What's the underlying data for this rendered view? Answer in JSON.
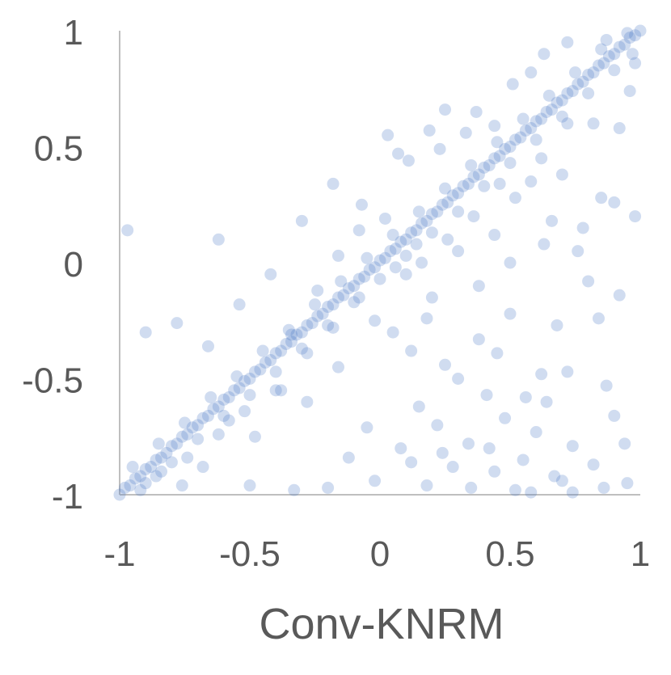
{
  "chart_data": {
    "type": "scatter",
    "title": "",
    "xlabel": "Conv-KNRM",
    "ylabel": "",
    "xlim": [
      -1,
      1
    ],
    "ylim": [
      -1,
      1
    ],
    "x_ticks": [
      -1,
      -0.5,
      0,
      0.5,
      1
    ],
    "y_ticks": [
      -1,
      -0.5,
      0,
      0.5,
      1
    ],
    "x_tick_labels": [
      "-1",
      "-0.5",
      "0",
      "0.5",
      "1"
    ],
    "y_tick_labels": [
      "-1",
      "-0.5",
      "0",
      "0.5",
      "1"
    ],
    "grid": false,
    "marker_color": "#4472C4",
    "marker_opacity": 0.25,
    "series": [
      {
        "points": [
          [
            -1.0,
            -1.0
          ],
          [
            -0.98,
            -0.97
          ],
          [
            -0.96,
            -0.96
          ],
          [
            -0.94,
            -0.93
          ],
          [
            -0.92,
            -0.92
          ],
          [
            -0.9,
            -0.89
          ],
          [
            -0.88,
            -0.88
          ],
          [
            -0.86,
            -0.85
          ],
          [
            -0.84,
            -0.84
          ],
          [
            -0.82,
            -0.82
          ],
          [
            -0.8,
            -0.79
          ],
          [
            -0.78,
            -0.78
          ],
          [
            -0.76,
            -0.75
          ],
          [
            -0.74,
            -0.74
          ],
          [
            -0.72,
            -0.71
          ],
          [
            -0.7,
            -0.7
          ],
          [
            -0.68,
            -0.67
          ],
          [
            -0.66,
            -0.66
          ],
          [
            -0.64,
            -0.63
          ],
          [
            -0.62,
            -0.62
          ],
          [
            -0.6,
            -0.59
          ],
          [
            -0.58,
            -0.58
          ],
          [
            -0.56,
            -0.55
          ],
          [
            -0.54,
            -0.54
          ],
          [
            -0.52,
            -0.51
          ],
          [
            -0.5,
            -0.5
          ],
          [
            -0.48,
            -0.47
          ],
          [
            -0.46,
            -0.46
          ],
          [
            -0.44,
            -0.43
          ],
          [
            -0.42,
            -0.42
          ],
          [
            -0.4,
            -0.39
          ],
          [
            -0.38,
            -0.38
          ],
          [
            -0.36,
            -0.35
          ],
          [
            -0.34,
            -0.34
          ],
          [
            -0.32,
            -0.31
          ],
          [
            -0.3,
            -0.3
          ],
          [
            -0.28,
            -0.27
          ],
          [
            -0.26,
            -0.26
          ],
          [
            -0.24,
            -0.23
          ],
          [
            -0.22,
            -0.22
          ],
          [
            -0.2,
            -0.19
          ],
          [
            -0.18,
            -0.18
          ],
          [
            -0.16,
            -0.15
          ],
          [
            -0.14,
            -0.14
          ],
          [
            -0.12,
            -0.11
          ],
          [
            -0.1,
            -0.1
          ],
          [
            -0.08,
            -0.07
          ],
          [
            -0.06,
            -0.06
          ],
          [
            -0.04,
            -0.03
          ],
          [
            -0.02,
            -0.02
          ],
          [
            0.0,
            0.01
          ],
          [
            0.02,
            0.02
          ],
          [
            0.04,
            0.05
          ],
          [
            0.06,
            0.06
          ],
          [
            0.08,
            0.09
          ],
          [
            0.1,
            0.1
          ],
          [
            0.12,
            0.13
          ],
          [
            0.14,
            0.14
          ],
          [
            0.16,
            0.17
          ],
          [
            0.18,
            0.18
          ],
          [
            0.2,
            0.21
          ],
          [
            0.22,
            0.22
          ],
          [
            0.24,
            0.25
          ],
          [
            0.26,
            0.26
          ],
          [
            0.28,
            0.29
          ],
          [
            0.3,
            0.3
          ],
          [
            0.32,
            0.33
          ],
          [
            0.34,
            0.34
          ],
          [
            0.36,
            0.37
          ],
          [
            0.38,
            0.38
          ],
          [
            0.4,
            0.41
          ],
          [
            0.42,
            0.42
          ],
          [
            0.44,
            0.45
          ],
          [
            0.46,
            0.46
          ],
          [
            0.48,
            0.49
          ],
          [
            0.5,
            0.5
          ],
          [
            0.52,
            0.53
          ],
          [
            0.54,
            0.54
          ],
          [
            0.56,
            0.57
          ],
          [
            0.58,
            0.58
          ],
          [
            0.6,
            0.61
          ],
          [
            0.62,
            0.62
          ],
          [
            0.64,
            0.65
          ],
          [
            0.66,
            0.66
          ],
          [
            0.68,
            0.69
          ],
          [
            0.7,
            0.7
          ],
          [
            0.72,
            0.73
          ],
          [
            0.74,
            0.74
          ],
          [
            0.76,
            0.77
          ],
          [
            0.78,
            0.78
          ],
          [
            0.8,
            0.81
          ],
          [
            0.82,
            0.82
          ],
          [
            0.84,
            0.85
          ],
          [
            0.86,
            0.86
          ],
          [
            0.88,
            0.89
          ],
          [
            0.9,
            0.9
          ],
          [
            0.92,
            0.93
          ],
          [
            0.94,
            0.94
          ],
          [
            0.96,
            0.97
          ],
          [
            0.98,
            0.98
          ],
          [
            1.0,
            1.0
          ],
          [
            -0.95,
            -0.88
          ],
          [
            -0.9,
            -0.95
          ],
          [
            -0.85,
            -0.78
          ],
          [
            -0.8,
            -0.86
          ],
          [
            -0.75,
            -0.69
          ],
          [
            -0.7,
            -0.76
          ],
          [
            -0.65,
            -0.58
          ],
          [
            -0.6,
            -0.66
          ],
          [
            -0.55,
            -0.49
          ],
          [
            -0.5,
            -0.57
          ],
          [
            -0.45,
            -0.38
          ],
          [
            -0.4,
            -0.47
          ],
          [
            -0.35,
            -0.29
          ],
          [
            -0.3,
            -0.37
          ],
          [
            -0.25,
            -0.18
          ],
          [
            -0.2,
            -0.27
          ],
          [
            -0.15,
            -0.08
          ],
          [
            -0.1,
            -0.17
          ],
          [
            -0.05,
            0.02
          ],
          [
            0.0,
            -0.07
          ],
          [
            0.05,
            0.12
          ],
          [
            0.1,
            0.03
          ],
          [
            0.15,
            0.22
          ],
          [
            0.2,
            0.13
          ],
          [
            0.25,
            0.32
          ],
          [
            0.3,
            0.22
          ],
          [
            0.35,
            0.42
          ],
          [
            0.4,
            0.33
          ],
          [
            0.45,
            0.52
          ],
          [
            0.5,
            0.43
          ],
          [
            0.55,
            0.62
          ],
          [
            0.6,
            0.53
          ],
          [
            0.65,
            0.72
          ],
          [
            0.7,
            0.63
          ],
          [
            0.75,
            0.82
          ],
          [
            0.8,
            0.73
          ],
          [
            0.85,
            0.92
          ],
          [
            0.9,
            0.83
          ],
          [
            0.95,
            0.99
          ],
          [
            0.97,
            0.9
          ],
          [
            -0.97,
            0.14
          ],
          [
            -0.62,
            0.1
          ],
          [
            -0.3,
            0.18
          ],
          [
            -0.18,
            0.34
          ],
          [
            -0.07,
            0.25
          ],
          [
            0.03,
            0.55
          ],
          [
            0.07,
            0.47
          ],
          [
            0.11,
            0.44
          ],
          [
            0.19,
            0.57
          ],
          [
            0.23,
            0.49
          ],
          [
            0.25,
            0.66
          ],
          [
            0.33,
            0.56
          ],
          [
            0.37,
            0.65
          ],
          [
            0.44,
            0.59
          ],
          [
            0.51,
            0.77
          ],
          [
            0.58,
            0.82
          ],
          [
            0.63,
            0.9
          ],
          [
            0.72,
            0.95
          ],
          [
            0.87,
            0.96
          ],
          [
            -0.9,
            -0.3
          ],
          [
            -0.78,
            -0.26
          ],
          [
            -0.66,
            -0.36
          ],
          [
            -0.54,
            -0.18
          ],
          [
            -0.42,
            -0.05
          ],
          [
            -0.34,
            -0.31
          ],
          [
            -0.24,
            -0.12
          ],
          [
            -0.16,
            0.03
          ],
          [
            -0.08,
            0.14
          ],
          [
            0.02,
            0.19
          ],
          [
            0.05,
            -0.3
          ],
          [
            0.12,
            -0.38
          ],
          [
            0.18,
            -0.24
          ],
          [
            0.25,
            -0.44
          ],
          [
            0.3,
            -0.5
          ],
          [
            0.38,
            -0.33
          ],
          [
            0.45,
            -0.39
          ],
          [
            0.5,
            -0.22
          ],
          [
            0.56,
            -0.58
          ],
          [
            0.62,
            -0.48
          ],
          [
            0.68,
            -0.27
          ],
          [
            0.72,
            -0.47
          ],
          [
            0.8,
            -0.08
          ],
          [
            0.87,
            -0.53
          ],
          [
            0.92,
            -0.14
          ],
          [
            0.15,
            -0.62
          ],
          [
            0.22,
            -0.7
          ],
          [
            0.34,
            -0.78
          ],
          [
            0.41,
            -0.57
          ],
          [
            0.48,
            -0.67
          ],
          [
            0.55,
            -0.85
          ],
          [
            0.6,
            -0.73
          ],
          [
            0.67,
            -0.92
          ],
          [
            0.74,
            -0.79
          ],
          [
            0.82,
            -0.87
          ],
          [
            0.9,
            -0.66
          ],
          [
            0.95,
            -0.95
          ],
          [
            0.28,
            -0.88
          ],
          [
            0.44,
            -0.9
          ],
          [
            0.64,
            -0.6
          ],
          [
            0.08,
            -0.8
          ],
          [
            -0.05,
            -0.71
          ],
          [
            -0.12,
            -0.84
          ],
          [
            0.18,
            -0.96
          ],
          [
            0.35,
            -0.97
          ],
          [
            0.52,
            -0.98
          ],
          [
            0.7,
            -0.94
          ],
          [
            0.86,
            -0.97
          ],
          [
            0.98,
            0.2
          ],
          [
            0.92,
            0.58
          ],
          [
            0.85,
            0.28
          ],
          [
            0.78,
            0.15
          ],
          [
            0.7,
            0.38
          ],
          [
            0.63,
            0.08
          ],
          [
            0.58,
            0.35
          ],
          [
            0.5,
            0.0
          ],
          [
            0.44,
            0.12
          ],
          [
            0.38,
            -0.1
          ],
          [
            0.3,
            0.05
          ],
          [
            0.2,
            -0.15
          ],
          [
            0.16,
            0.0
          ],
          [
            0.1,
            -0.05
          ],
          [
            -0.02,
            -0.25
          ],
          [
            -0.16,
            -0.45
          ],
          [
            -0.28,
            -0.6
          ],
          [
            -0.38,
            -0.55
          ],
          [
            -0.48,
            -0.75
          ],
          [
            -0.58,
            -0.68
          ],
          [
            -0.68,
            -0.88
          ],
          [
            -0.76,
            -0.96
          ],
          [
            -0.86,
            -0.92
          ],
          [
            -0.92,
            -0.98
          ],
          [
            -0.5,
            -0.96
          ],
          [
            -0.33,
            -0.98
          ],
          [
            -0.2,
            -0.97
          ],
          [
            -0.02,
            -0.94
          ],
          [
            0.12,
            -0.86
          ],
          [
            0.24,
            -0.82
          ],
          [
            0.42,
            -0.8
          ],
          [
            0.58,
            -0.99
          ],
          [
            0.74,
            -0.99
          ],
          [
            0.94,
            -0.78
          ],
          [
            0.66,
            0.18
          ],
          [
            0.76,
            0.05
          ],
          [
            0.84,
            -0.24
          ],
          [
            0.9,
            0.26
          ],
          [
            0.96,
            0.74
          ],
          [
            0.98,
            0.86
          ],
          [
            0.82,
            0.6
          ],
          [
            0.72,
            0.6
          ],
          [
            0.62,
            0.45
          ],
          [
            0.52,
            0.28
          ],
          [
            0.46,
            0.34
          ],
          [
            0.36,
            0.2
          ],
          [
            0.26,
            0.1
          ],
          [
            0.14,
            0.08
          ],
          [
            0.06,
            -0.02
          ],
          [
            -0.08,
            -0.15
          ],
          [
            -0.18,
            -0.28
          ],
          [
            -0.28,
            -0.39
          ],
          [
            -0.4,
            -0.55
          ],
          [
            -0.52,
            -0.64
          ],
          [
            -0.62,
            -0.74
          ],
          [
            -0.74,
            -0.84
          ],
          [
            -0.84,
            -0.9
          ]
        ]
      }
    ]
  }
}
